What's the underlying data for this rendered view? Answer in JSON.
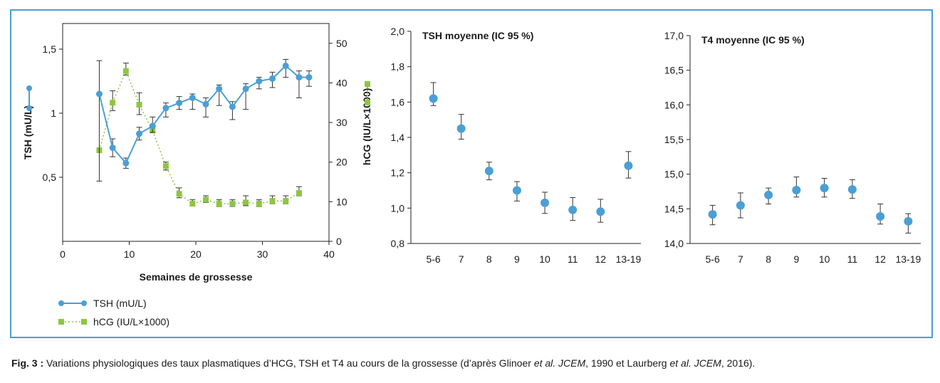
{
  "colors": {
    "border": "#4a9fd5",
    "tsh": "#4a9fd5",
    "hcg": "#8ec63f",
    "text": "#1a1a1a"
  },
  "chart_data": [
    {
      "type": "line",
      "xlabel": "Semaines de grossesse",
      "ylabel": "TSH (mU/L)",
      "y2label": "hCG (IU/L×1000)",
      "xlim": [
        0,
        40
      ],
      "ylim": [
        0,
        1.7
      ],
      "y2lim": [
        0,
        55
      ],
      "x_ticks": [
        "0",
        "10",
        "20",
        "30",
        "40"
      ],
      "y_ticks": [
        "0,5",
        "1",
        "1,5"
      ],
      "y2_ticks": [
        "0",
        "10",
        "20",
        "30",
        "40",
        "50"
      ],
      "legend_position": "bottom-left",
      "series": [
        {
          "name": "TSH (mU/L)",
          "axis": "left",
          "marker": "circle",
          "x": [
            5.5,
            7.5,
            9.5,
            11.5,
            13.5,
            15.5,
            17.5,
            19.5,
            21.5,
            23.5,
            25.5,
            27.5,
            29.5,
            31.5,
            33.5,
            35.5,
            37
          ],
          "y": [
            1.15,
            0.73,
            0.61,
            0.84,
            0.9,
            1.04,
            1.08,
            1.12,
            1.07,
            1.19,
            1.05,
            1.19,
            1.25,
            1.27,
            1.37,
            1.28,
            1.28
          ],
          "err_low": [
            0.47,
            0.66,
            0.57,
            0.79,
            0.85,
            0.97,
            1.03,
            1.03,
            0.97,
            1.06,
            0.95,
            1.03,
            1.19,
            1.2,
            1.28,
            1.12,
            1.21
          ],
          "err_high": [
            1.41,
            0.8,
            0.65,
            0.89,
            0.97,
            1.08,
            1.13,
            1.15,
            1.12,
            1.22,
            1.09,
            1.23,
            1.28,
            1.32,
            1.42,
            1.33,
            1.33
          ]
        },
        {
          "name": "hCG (IU/L×1000)",
          "axis": "right",
          "marker": "square",
          "x": [
            5.5,
            7.5,
            9.5,
            11.5,
            13.5,
            15.5,
            17.5,
            19.5,
            21.5,
            23.5,
            25.5,
            27.5,
            29.5,
            31.5,
            33.5,
            35.5
          ],
          "y": [
            23,
            35,
            43,
            34.5,
            28,
            19,
            12,
            9.5,
            10.5,
            9.5,
            9.5,
            9.8,
            9.5,
            10.2,
            10.2,
            12.2
          ],
          "err_low": [],
          "err_high": [],
          "err": [
            null,
            [
              33,
              38
            ],
            [
              42,
              45
            ],
            [
              32,
              37.5
            ],
            null,
            [
              18,
              20
            ],
            [
              11,
              13.5
            ],
            [
              9,
              10.5
            ],
            [
              9.8,
              11.5
            ],
            [
              8.8,
              10.5
            ],
            [
              8.8,
              10.5
            ],
            [
              9,
              11.5
            ],
            [
              8.8,
              10.5
            ],
            [
              9.5,
              11.5
            ],
            [
              9.5,
              11.5
            ],
            [
              11.5,
              13.8
            ]
          ]
        }
      ]
    },
    {
      "type": "scatter",
      "title": "TSH moyenne (IC 95 %)",
      "categories": [
        "5-6",
        "7",
        "8",
        "9",
        "10",
        "11",
        "12",
        "13-19"
      ],
      "values": [
        1.62,
        1.45,
        1.21,
        1.1,
        1.03,
        0.99,
        0.98,
        1.24
      ],
      "err_low": [
        1.58,
        1.39,
        1.16,
        1.04,
        0.97,
        0.93,
        0.92,
        1.17
      ],
      "err_high": [
        1.71,
        1.53,
        1.26,
        1.15,
        1.09,
        1.06,
        1.05,
        1.32
      ],
      "ylim": [
        0.8,
        2.0
      ],
      "y_ticks": [
        "0,8",
        "1,0",
        "1,2",
        "1,4",
        "1,6",
        "1,8",
        "2,0"
      ]
    },
    {
      "type": "scatter",
      "title": "T4 moyenne (IC 95 %)",
      "categories": [
        "5-6",
        "7",
        "8",
        "9",
        "10",
        "11",
        "12",
        "13-19"
      ],
      "values": [
        14.42,
        14.55,
        14.7,
        14.77,
        14.8,
        14.78,
        14.39,
        14.32
      ],
      "err_low": [
        14.27,
        14.37,
        14.57,
        14.67,
        14.67,
        14.65,
        14.28,
        14.15
      ],
      "err_high": [
        14.55,
        14.73,
        14.8,
        14.96,
        14.94,
        14.92,
        14.57,
        14.43
      ],
      "ylim": [
        14.0,
        17.0
      ],
      "y_ticks": [
        "14,0",
        "14,5",
        "15,0",
        "15,5",
        "16,0",
        "16,5",
        "17,0"
      ]
    }
  ],
  "caption": {
    "label": "Fig. 3 :",
    "text1": " Variations physiologiques des taux plasmatiques d’HCG, TSH et T4 au cours de la grossesse (d’après Glinoer ",
    "etal1": "et al.",
    "journal1": " JCEM",
    "text2": ", 1990 et Laurberg ",
    "etal2": "et al.",
    "journal2": " JCEM",
    "text3": ", 2016)."
  }
}
